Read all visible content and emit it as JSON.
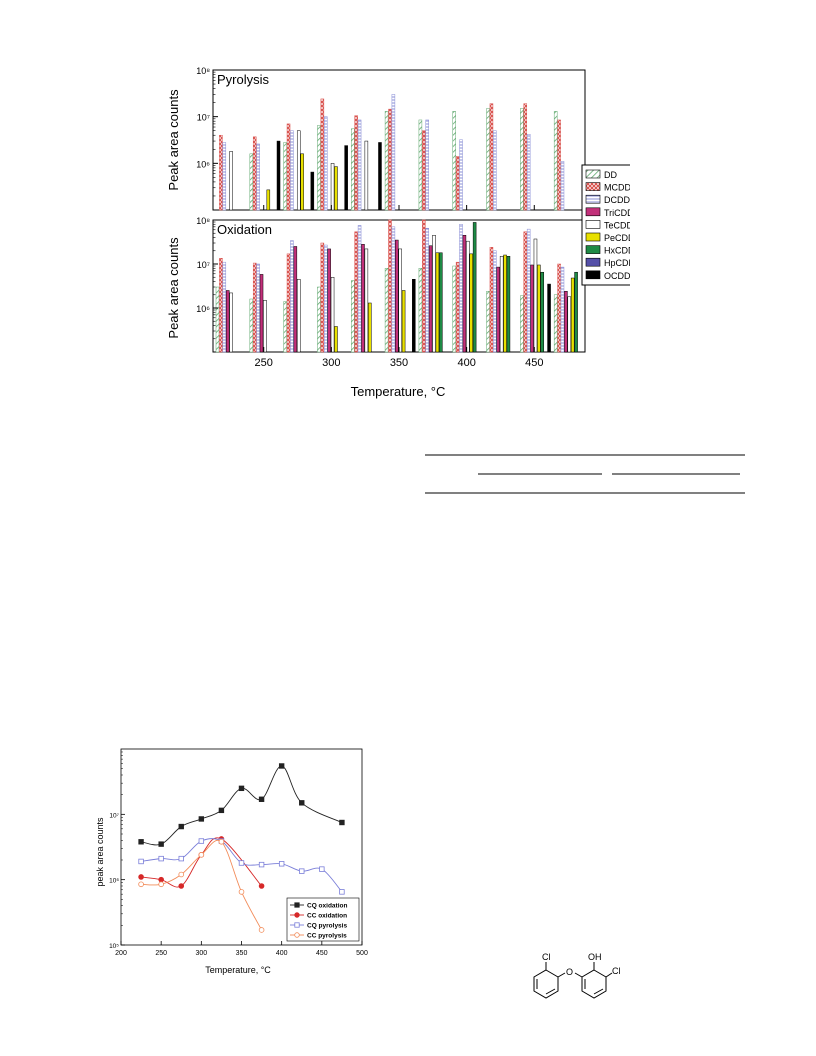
{
  "figure1": {
    "xlabel": "Temperature, °C",
    "ylabel": "Peak area counts",
    "xticks": [
      "250",
      "300",
      "350",
      "400",
      "450"
    ],
    "yticks": [
      "10⁶",
      "10⁷",
      "10⁸"
    ],
    "legend": [
      {
        "name": "DD",
        "color": "#5fa86e",
        "pattern": "hatch"
      },
      {
        "name": "MCDD",
        "color": "#d9534f",
        "pattern": "cross"
      },
      {
        "name": "DCDD",
        "color": "#8a8fd6",
        "pattern": "hlines"
      },
      {
        "name": "TriCDD",
        "color": "#c2307a",
        "pattern": "solid"
      },
      {
        "name": "TeCDD",
        "color": "#ffffff",
        "pattern": "solid"
      },
      {
        "name": "PeCDD",
        "color": "#e8e000",
        "pattern": "solid"
      },
      {
        "name": "HxCDD",
        "color": "#1e8a45",
        "pattern": "solid"
      },
      {
        "name": "HpCDD",
        "color": "#5550a8",
        "pattern": "solid"
      },
      {
        "name": "OCDD",
        "color": "#000000",
        "pattern": "solid"
      }
    ],
    "chart_data": [
      {
        "type": "bar",
        "title": "Pyrolysis",
        "scale": "log",
        "ylim": [
          100000.0,
          100000000.0
        ],
        "categories": [
          225,
          250,
          275,
          300,
          325,
          350,
          375,
          400,
          425,
          450,
          475
        ],
        "series": [
          {
            "name": "DD",
            "values": [
              0,
              1600000.0,
              2800000.0,
              6500000.0,
              5500000.0,
              13000000.0,
              8500000.0,
              13000000.0,
              15000000.0,
              15000000.0,
              13000000.0
            ]
          },
          {
            "name": "MCDD",
            "values": [
              4000000.0,
              3700000.0,
              7000000.0,
              24000000.0,
              10500000.0,
              14500000.0,
              5000000.0,
              1400000.0,
              19000000.0,
              19000000.0,
              8500000.0
            ]
          },
          {
            "name": "DCDD",
            "values": [
              2800000.0,
              2600000.0,
              5000000.0,
              10000000.0,
              8500000.0,
              30000000.0,
              8500000.0,
              3200000.0,
              5000000.0,
              4200000.0,
              1100000.0
            ]
          },
          {
            "name": "TriCDD",
            "values": [
              0,
              0,
              0,
              0,
              0,
              0,
              0,
              0,
              0,
              0,
              0
            ]
          },
          {
            "name": "TeCDD",
            "values": [
              1800000.0,
              0,
              5000000.0,
              1000000.0,
              3000000.0,
              0,
              0,
              0,
              0,
              0,
              0
            ]
          },
          {
            "name": "PeCDD",
            "values": [
              0,
              270000.0,
              1600000.0,
              850000.0,
              0,
              0,
              0,
              0,
              0,
              0,
              0
            ]
          },
          {
            "name": "HxCDD",
            "values": [
              0,
              0,
              0,
              0,
              0,
              0,
              0,
              0,
              0,
              0,
              0
            ]
          },
          {
            "name": "HpCDD",
            "values": [
              0,
              0,
              0,
              0,
              0,
              0,
              0,
              0,
              0,
              0,
              0
            ]
          },
          {
            "name": "OCDD",
            "values": [
              0,
              3000000.0,
              650000.0,
              2400000.0,
              2800000.0,
              0,
              0,
              0,
              0,
              0,
              0
            ]
          }
        ]
      },
      {
        "type": "bar",
        "title": "Oxidation",
        "scale": "log",
        "ylim": [
          100000.0,
          100000000.0
        ],
        "categories": [
          225,
          250,
          275,
          300,
          325,
          350,
          375,
          400,
          425,
          450,
          475
        ],
        "series": [
          {
            "name": "DD",
            "values": [
              3000000.0,
              1600000.0,
              1400000.0,
              3000000.0,
              4200000.0,
              8000000.0,
              8000000.0,
              9000000.0,
              2400000.0,
              1900000.0,
              2000000.0
            ]
          },
          {
            "name": "MCDD",
            "values": [
              13500000.0,
              10500000.0,
              17000000.0,
              30000000.0,
              54000000.0,
              130000000.0,
              130000000.0,
              11000000.0,
              24000000.0,
              54000000.0,
              10000000.0
            ]
          },
          {
            "name": "DCDD",
            "values": [
              11000000.0,
              10000000.0,
              34000000.0,
              27000000.0,
              75000000.0,
              70000000.0,
              65000000.0,
              80000000.0,
              20000000.0,
              62000000.0,
              8500000.0
            ]
          },
          {
            "name": "TriCDD",
            "values": [
              2500000.0,
              5800000.0,
              25000000.0,
              22000000.0,
              28000000.0,
              35000000.0,
              26000000.0,
              45000000.0,
              8500000.0,
              9500000.0,
              2400000.0
            ]
          },
          {
            "name": "TeCDD",
            "values": [
              2200000.0,
              1500000.0,
              4500000.0,
              5000000.0,
              22000000.0,
              22000000.0,
              45000000.0,
              33000000.0,
              15000000.0,
              37000000.0,
              1800000.0
            ]
          },
          {
            "name": "PeCDD",
            "values": [
              0,
              0,
              0,
              380000.0,
              1300000.0,
              2500000.0,
              18000000.0,
              17000000.0,
              16000000.0,
              9500000.0,
              4800000.0
            ]
          },
          {
            "name": "HxCDD",
            "values": [
              0,
              0,
              0,
              0,
              0,
              0,
              18000000.0,
              88000000.0,
              15000000.0,
              6500000.0,
              6500000.0
            ]
          },
          {
            "name": "HpCDD",
            "values": [
              0,
              0,
              0,
              0,
              0,
              0,
              0,
              0,
              0,
              0,
              0
            ]
          },
          {
            "name": "OCDD",
            "values": [
              0,
              0,
              0,
              0,
              0,
              4500000.0,
              0,
              0,
              0,
              3500000.0,
              0
            ]
          }
        ]
      }
    ]
  },
  "figure2": {
    "xlabel": "Temperature, °C",
    "ylabel": "peak area counts",
    "xticks": [
      "200",
      "250",
      "300",
      "350",
      "400",
      "450",
      "500"
    ],
    "yticks": [
      "10⁵",
      "10⁶",
      "10⁷"
    ],
    "chart_data": {
      "type": "scatter",
      "scale": "log",
      "xlim": [
        200,
        500
      ],
      "ylim": [
        100000.0,
        100000000.0
      ],
      "series": [
        {
          "name": "CQ oxidation",
          "color": "#222222",
          "marker": "filled-square",
          "x": [
            225,
            250,
            275,
            300,
            325,
            350,
            375,
            400,
            425,
            475
          ],
          "y": [
            3800000.0,
            3500000.0,
            6500000.0,
            8500000.0,
            11500000.0,
            25000000.0,
            17000000.0,
            55000000.0,
            15000000.0,
            7500000.0
          ]
        },
        {
          "name": "CC oxidation",
          "color": "#d62828",
          "marker": "filled-circle",
          "x": [
            225,
            250,
            275,
            300,
            325,
            375
          ],
          "y": [
            1100000.0,
            1000000.0,
            800000.0,
            2400000.0,
            4200000.0,
            800000.0
          ]
        },
        {
          "name": "CQ pyrolysis",
          "color": "#7b7fd9",
          "marker": "open-square",
          "x": [
            225,
            250,
            275,
            300,
            325,
            350,
            375,
            400,
            425,
            450,
            475
          ],
          "y": [
            1900000.0,
            2100000.0,
            2100000.0,
            3900000.0,
            3900000.0,
            1800000.0,
            1700000.0,
            1750000.0,
            1350000.0,
            1450000.0,
            650000.0
          ]
        },
        {
          "name": "CC pyrolysis",
          "color": "#f28c5a",
          "marker": "open-circle",
          "x": [
            225,
            250,
            275,
            300,
            325,
            350,
            375
          ],
          "y": [
            850000.0,
            850000.0,
            1200000.0,
            2400000.0,
            3800000.0,
            650000.0,
            170000.0
          ]
        }
      ]
    }
  },
  "structure": {
    "labels": [
      "Cl",
      "O",
      "OH",
      "Cl"
    ]
  }
}
